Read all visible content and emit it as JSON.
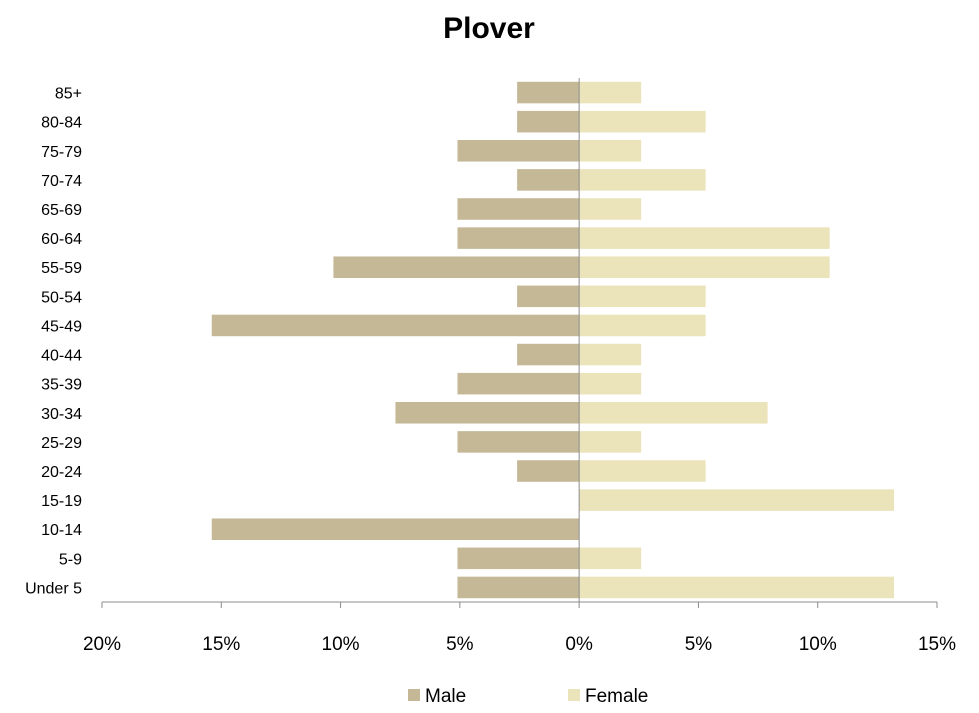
{
  "chart_data": {
    "type": "bar",
    "orientation": "horizontal",
    "title": "Plover",
    "categories": [
      "85+",
      "80-84",
      "75-79",
      "70-74",
      "65-69",
      "60-64",
      "55-59",
      "50-54",
      "45-49",
      "40-44",
      "35-39",
      "30-34",
      "25-29",
      "20-24",
      "15-19",
      "10-14",
      "5-9",
      "Under 5"
    ],
    "series": [
      {
        "name": "Male",
        "color": "#c4b896",
        "values": [
          2.6,
          2.6,
          5.1,
          2.6,
          5.1,
          5.1,
          10.3,
          2.6,
          15.4,
          2.6,
          5.1,
          7.7,
          5.1,
          2.6,
          0,
          15.4,
          5.1,
          5.1
        ]
      },
      {
        "name": "Female",
        "color": "#ebe3b9",
        "values": [
          2.6,
          5.3,
          2.6,
          5.3,
          2.6,
          10.5,
          10.5,
          5.3,
          5.3,
          2.6,
          2.6,
          7.9,
          2.6,
          5.3,
          13.2,
          0,
          2.6,
          13.2
        ]
      }
    ],
    "xlim": [
      -20,
      15
    ],
    "x_ticks": [
      -20,
      -15,
      -10,
      -5,
      0,
      5,
      10,
      15
    ],
    "x_tick_labels": [
      "20%",
      "15%",
      "10%",
      "5%",
      "0%",
      "5%",
      "10%",
      "15%"
    ],
    "unit": "%",
    "grid": false,
    "legend_position": "bottom"
  }
}
